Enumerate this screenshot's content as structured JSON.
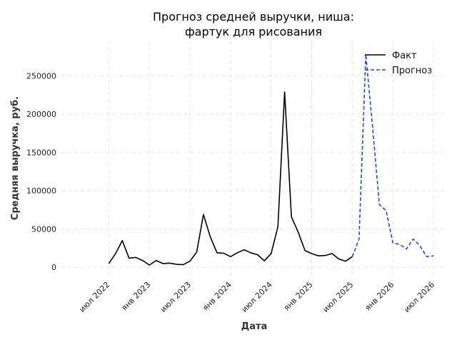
{
  "colors": {
    "fact": "#000000",
    "forecast": "#1a4fd6"
  },
  "chart_data": {
    "type": "line",
    "title": [
      "Прогноз средней выручки, ниша:",
      "фартук для рисования"
    ],
    "xlabel": "Дата",
    "ylabel": "Средняя выручка, руб.",
    "ylim": [
      -10000,
      295000
    ],
    "yticks": [
      0,
      50000,
      100000,
      150000,
      200000,
      250000
    ],
    "yticks_labels": [
      "0",
      "50000",
      "100000",
      "150000",
      "200000",
      "250000"
    ],
    "xlim": [
      "2021-12",
      "2026-09"
    ],
    "xticks": [
      "2022-07",
      "2023-01",
      "2023-07",
      "2024-01",
      "2024-07",
      "2025-01",
      "2025-07",
      "2026-01",
      "2026-07"
    ],
    "xticks_labels": [
      "июл 2022",
      "янв 2023",
      "июл 2023",
      "янв 2024",
      "июл 2024",
      "янв 2025",
      "июл 2025",
      "янв 2026",
      "июл 2026"
    ],
    "grid": true,
    "legend": "top-right",
    "series": [
      {
        "name": "Факт",
        "style": "solid",
        "x": [
          "2022-07",
          "2022-08",
          "2022-09",
          "2022-10",
          "2022-11",
          "2022-12",
          "2023-01",
          "2023-02",
          "2023-03",
          "2023-04",
          "2023-05",
          "2023-06",
          "2023-07",
          "2023-08",
          "2023-09",
          "2023-10",
          "2023-11",
          "2023-12",
          "2024-01",
          "2024-02",
          "2024-03",
          "2024-04",
          "2024-05",
          "2024-06",
          "2024-07",
          "2024-08",
          "2024-09",
          "2024-10",
          "2024-11",
          "2024-12",
          "2025-01",
          "2025-02",
          "2025-03",
          "2025-04",
          "2025-05",
          "2025-06",
          "2025-07"
        ],
        "values": [
          5000,
          18000,
          35000,
          12000,
          13000,
          9000,
          3000,
          9000,
          5000,
          5500,
          4000,
          3500,
          8000,
          20000,
          69000,
          40000,
          19000,
          18500,
          14000,
          19000,
          23000,
          19000,
          16500,
          8500,
          18000,
          53000,
          229000,
          66000,
          46000,
          22000,
          18000,
          15000,
          15500,
          18000,
          11000,
          8000,
          14000
        ]
      },
      {
        "name": "Прогноз",
        "style": "dashed",
        "x": [
          "2025-07",
          "2025-08",
          "2025-09",
          "2025-10",
          "2025-11",
          "2025-12",
          "2026-01",
          "2026-02",
          "2026-03",
          "2026-04",
          "2026-05",
          "2026-06",
          "2026-07"
        ],
        "values": [
          14000,
          37000,
          278000,
          183000,
          82000,
          74000,
          32000,
          30000,
          24000,
          37000,
          28000,
          14000,
          15000
        ]
      }
    ]
  }
}
